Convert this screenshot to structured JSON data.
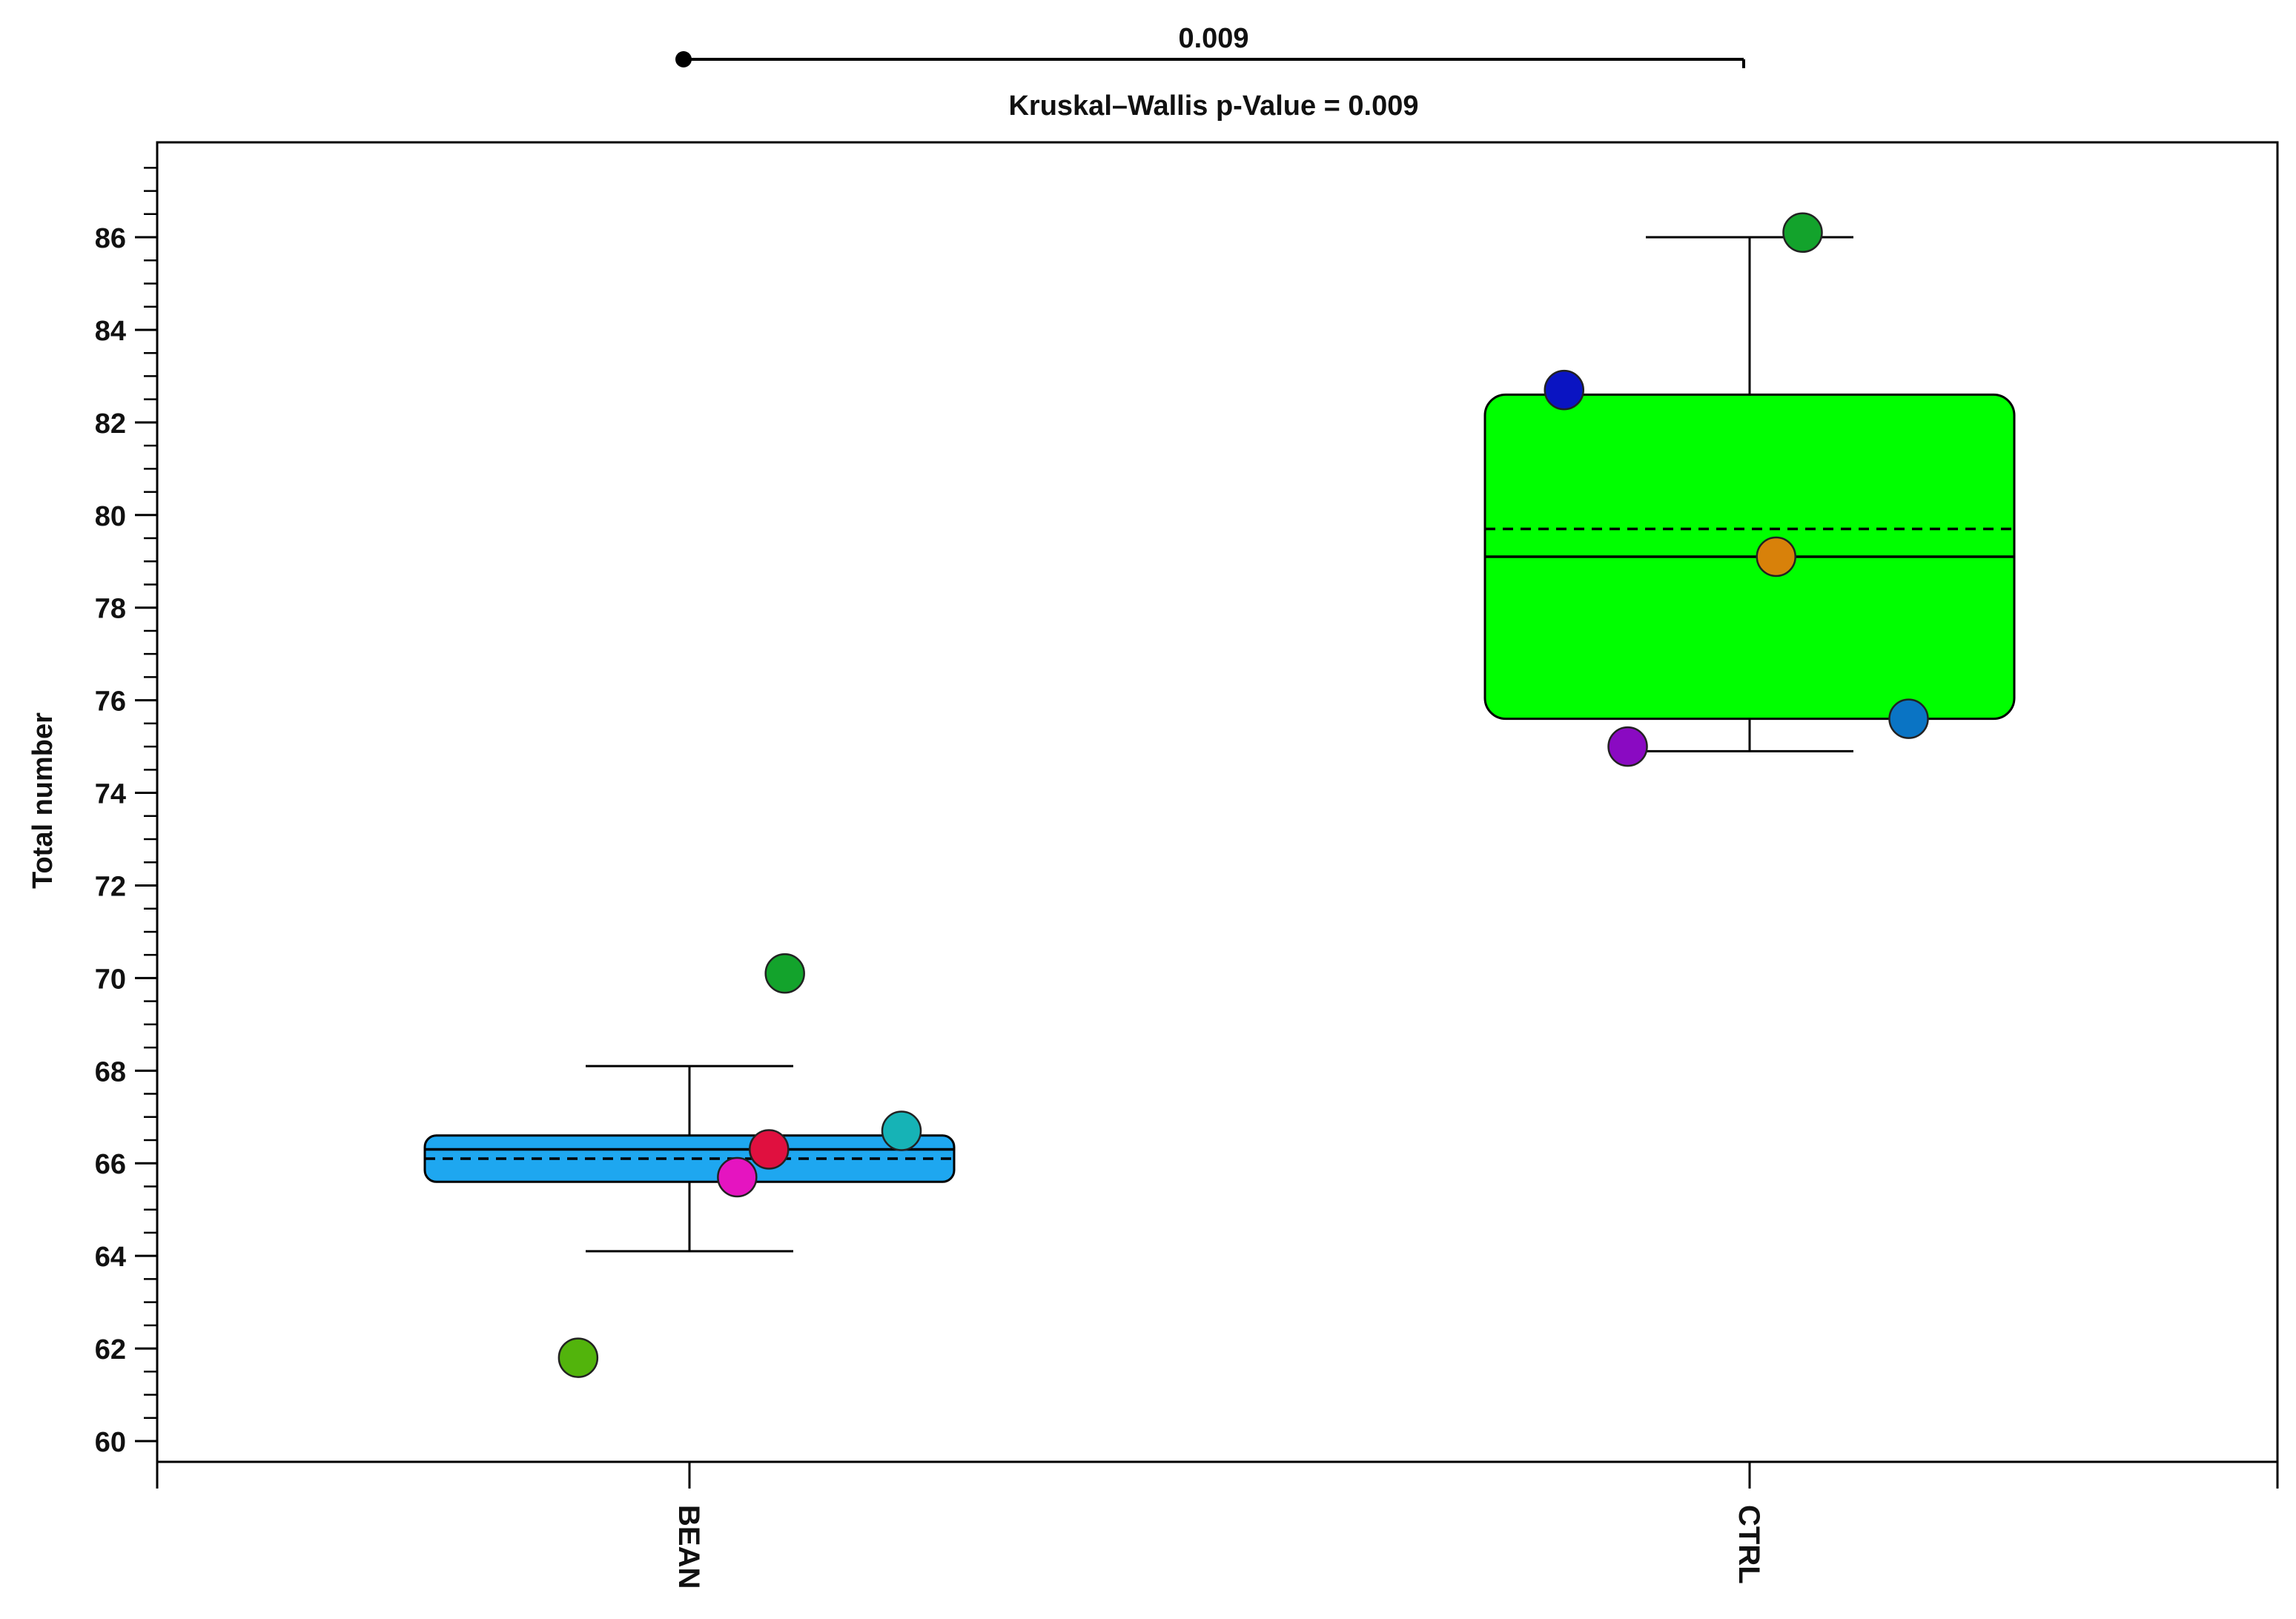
{
  "chart_data": {
    "type": "box",
    "title": "Kruskal–Wallis p-Value = 0.009",
    "xlabel": "",
    "ylabel": "Total number",
    "ylim": [
      59.5,
      88
    ],
    "yticks": [
      60,
      62,
      64,
      66,
      68,
      70,
      72,
      74,
      76,
      78,
      80,
      82,
      84,
      86
    ],
    "categories": [
      "BEAN",
      "CTRL"
    ],
    "significance": {
      "label": "0.009",
      "from": "BEAN",
      "to": "CTRL"
    },
    "groups": [
      {
        "name": "BEAN",
        "color": "#1ea7f0",
        "whisker_low": 64.1,
        "q1": 65.6,
        "median": 66.3,
        "mean": 66.1,
        "q3": 66.6,
        "whisker_high": 68.1,
        "points": [
          {
            "y": 70.1,
            "x_offset": 0.18,
            "color": "#13a32c"
          },
          {
            "y": 66.7,
            "x_offset": 0.4,
            "color": "#16b3b6"
          },
          {
            "y": 66.3,
            "x_offset": 0.15,
            "color": "#e0103f"
          },
          {
            "y": 65.7,
            "x_offset": 0.09,
            "color": "#e514c0"
          },
          {
            "y": 61.8,
            "x_offset": -0.21,
            "color": "#52b40c"
          }
        ]
      },
      {
        "name": "CTRL",
        "color": "#00ff00",
        "whisker_low": 74.9,
        "q1": 75.6,
        "median": 79.1,
        "mean": 79.7,
        "q3": 82.6,
        "whisker_high": 86.0,
        "points": [
          {
            "y": 86.1,
            "x_offset": 0.1,
            "color": "#13a32c"
          },
          {
            "y": 82.7,
            "x_offset": -0.35,
            "color": "#0a14c2"
          },
          {
            "y": 79.1,
            "x_offset": 0.05,
            "color": "#d8810a"
          },
          {
            "y": 75.6,
            "x_offset": 0.3,
            "color": "#0a74c4"
          },
          {
            "y": 75.0,
            "x_offset": -0.23,
            "color": "#8a0ac2"
          }
        ]
      }
    ]
  }
}
